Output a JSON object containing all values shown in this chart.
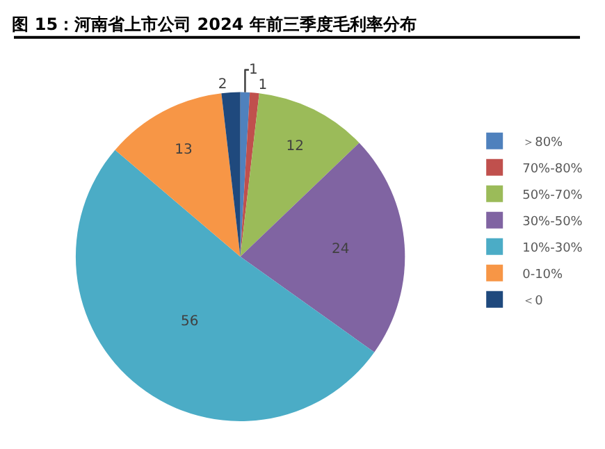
{
  "chart_data": {
    "type": "pie",
    "title": "图 15：河南省上市公司 2024 年前三季度毛利率分布",
    "categories": [
      "＞80%",
      "70%-80%",
      "50%-70%",
      "30%-50%",
      "10%-30%",
      "0-10%",
      "＜0"
    ],
    "values": [
      1,
      1,
      12,
      24,
      56,
      13,
      2
    ],
    "colors": [
      "#4f81bd",
      "#c0504d",
      "#9bbb59",
      "#8064a2",
      "#4bacc6",
      "#f79646",
      "#1f497d"
    ],
    "data_labels": true,
    "legend": "right"
  }
}
